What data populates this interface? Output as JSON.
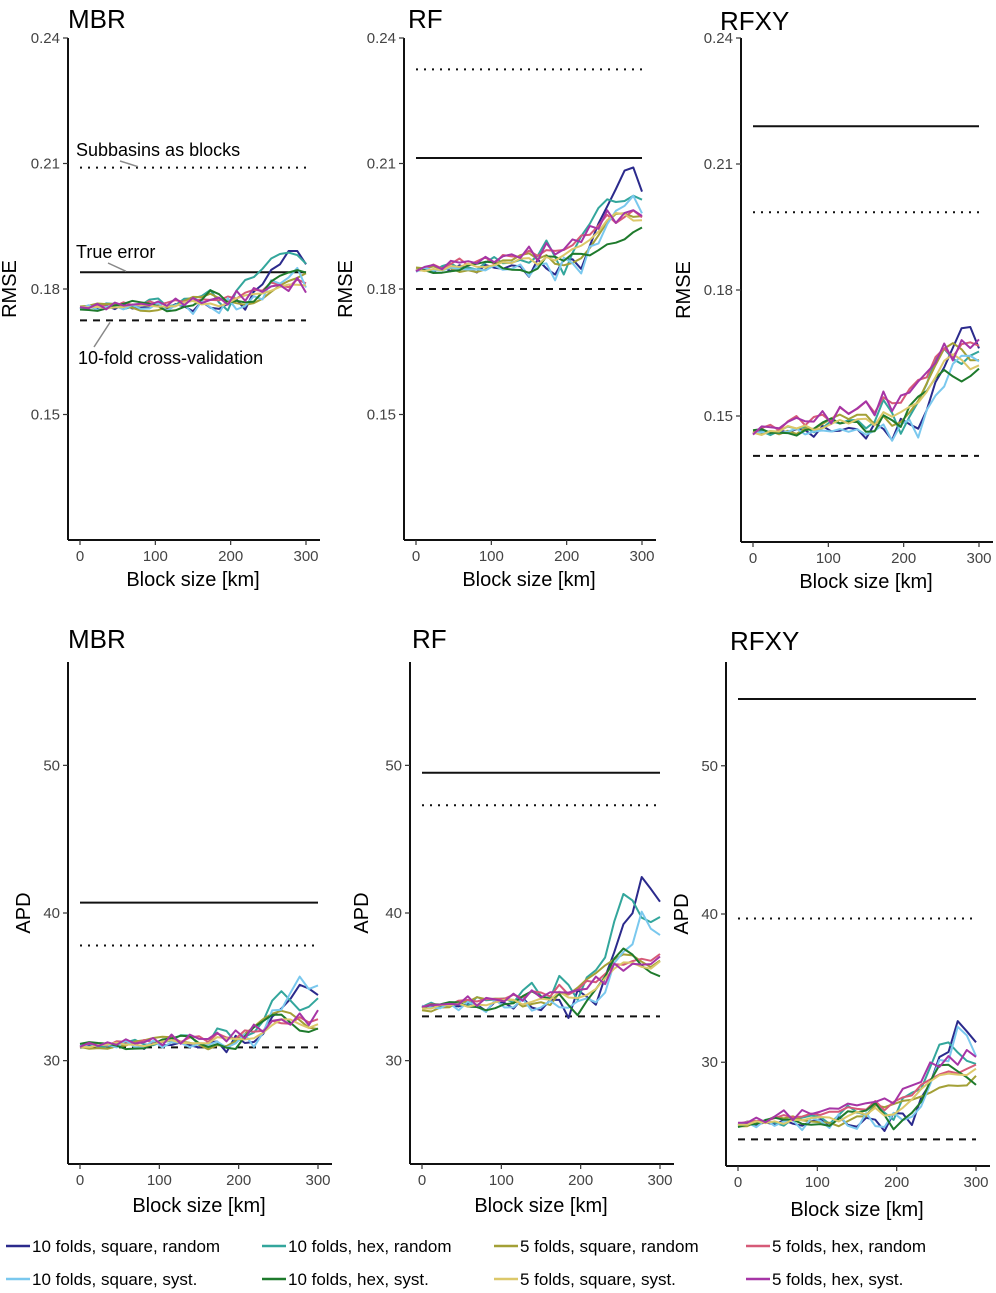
{
  "figure": {
    "xlabel": "Block size [km]",
    "x_ticks": [
      0,
      100,
      200,
      300
    ],
    "legend": [
      {
        "label": "10 folds, square, random",
        "color": "#2B2A8C"
      },
      {
        "label": "10 folds, hex, random",
        "color": "#33A69C"
      },
      {
        "label": "5 folds, square, random",
        "color": "#A3A036"
      },
      {
        "label": "5 folds, hex, random",
        "color": "#D65A78"
      },
      {
        "label": "10 folds, square, syst.",
        "color": "#7AC8EE"
      },
      {
        "label": "10 folds, hex, syst.",
        "color": "#1E7A2C"
      },
      {
        "label": "5 folds, square, syst.",
        "color": "#DCC86A"
      },
      {
        "label": "5 folds, hex, syst.",
        "color": "#A635A6"
      }
    ],
    "annotations": {
      "subbasins": "Subbasins as blocks",
      "true_error": "True error",
      "cv": "10-fold cross-validation"
    }
  },
  "chart_data": [
    {
      "type": "line",
      "title": "MBR",
      "xlabel": "Block size [km]",
      "ylabel": "RMSE",
      "ylim": [
        0.12,
        0.24
      ],
      "xlim": [
        0,
        300
      ],
      "yticks": [
        "0.15",
        "0.18",
        "0.21",
        "0.24"
      ],
      "y_tick_values": [
        0.15,
        0.18,
        0.21,
        0.24
      ],
      "true_error": 0.184,
      "subbasins": 0.209,
      "cv10": 0.1725,
      "start": 0.1755,
      "end": [
        0.1865,
        0.187,
        0.181,
        0.1815,
        0.182,
        0.1818,
        0.1805,
        0.181
      ]
    },
    {
      "type": "line",
      "title": "RF",
      "xlabel": "Block size [km]",
      "ylabel": "RMSE",
      "ylim": [
        0.12,
        0.24
      ],
      "xlim": [
        0,
        300
      ],
      "yticks": [
        "0.15",
        "0.18",
        "0.21",
        "0.24"
      ],
      "y_tick_values": [
        0.15,
        0.18,
        0.21,
        0.24
      ],
      "true_error": 0.2113,
      "subbasins": 0.2325,
      "cv10": 0.18,
      "start": 0.1845,
      "end": [
        0.2042,
        0.2005,
        0.1955,
        0.198,
        0.1982,
        0.192,
        0.197,
        0.1985
      ]
    },
    {
      "type": "line",
      "title": "RFXY",
      "xlabel": "Block size [km]",
      "ylabel": "RMSE",
      "ylim": [
        0.12,
        0.24
      ],
      "xlim": [
        0,
        300
      ],
      "yticks": [
        "0.15",
        "0.18",
        "0.21",
        "0.24"
      ],
      "y_tick_values": [
        0.15,
        0.18,
        0.21,
        0.24
      ],
      "true_error": 0.219,
      "subbasins": 0.1985,
      "cv10": 0.1405,
      "start": 0.146,
      "end": [
        0.1665,
        0.1635,
        0.164,
        0.1675,
        0.1615,
        0.1605,
        0.163,
        0.1675
      ]
    },
    {
      "type": "line",
      "title": "MBR",
      "xlabel": "Block size [km]",
      "ylabel": "APD",
      "ylim": [
        23,
        57
      ],
      "xlim": [
        0,
        300
      ],
      "yticks": [
        "30",
        "40",
        "50"
      ],
      "y_tick_values": [
        30,
        40,
        50
      ],
      "true_error": 40.7,
      "subbasins": 37.8,
      "cv10": 30.9,
      "start": 31.0,
      "end": [
        34.3,
        33.9,
        32.9,
        32.8,
        34.6,
        32.7,
        32.6,
        32.9
      ]
    },
    {
      "type": "line",
      "title": "RF",
      "xlabel": "Block size [km]",
      "ylabel": "APD",
      "ylim": [
        23,
        57
      ],
      "xlim": [
        0,
        300
      ],
      "yticks": [
        "30",
        "40",
        "50"
      ],
      "y_tick_values": [
        30,
        40,
        50
      ],
      "true_error": 49.5,
      "subbasins": 47.3,
      "cv10": 33.0,
      "start": 33.6,
      "end": [
        40.5,
        39.9,
        37.4,
        37.0,
        38.4,
        36.5,
        36.6,
        36.7
      ]
    },
    {
      "type": "line",
      "title": "RFXY",
      "xlabel": "Block size [km]",
      "ylabel": "APD",
      "ylim": [
        23,
        57
      ],
      "xlim": [
        0,
        300
      ],
      "yticks": [
        "30",
        "40",
        "50"
      ],
      "y_tick_values": [
        30,
        40,
        50
      ],
      "true_error": 54.5,
      "subbasins": 39.7,
      "cv10": 24.8,
      "start": 25.8,
      "end": [
        31.2,
        30.4,
        29.0,
        29.6,
        30.8,
        28.8,
        29.3,
        30.5
      ]
    }
  ]
}
